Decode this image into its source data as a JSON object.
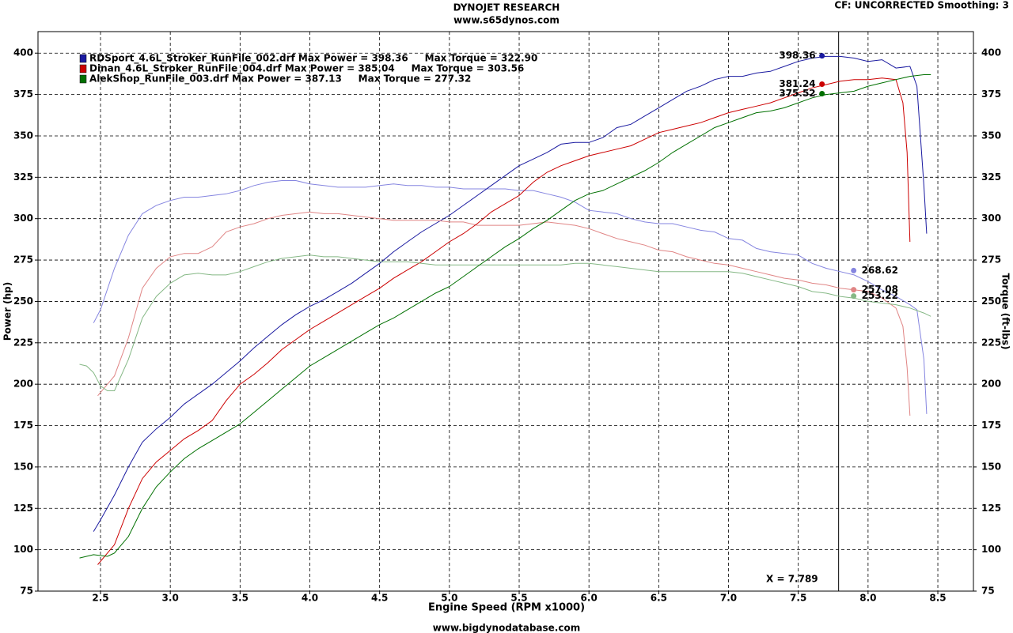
{
  "chart_data": {
    "type": "line",
    "title": "DYNOJET RESEARCH",
    "subtitle": "www.s65dynos.com",
    "top_right": "CF: UNCORRECTED  Smoothing: 3",
    "xlabel": "Engine Speed (RPM x1000)",
    "ylabel": "Power (hp)",
    "y2label": "Torque (ft-lbs)",
    "footer": "www.bigdynodatabase.com",
    "xlim": [
      2.052,
      8.755
    ],
    "xticks": [
      2.5,
      {
        "value": 3,
        "label": "3.0"
      },
      3.5,
      {
        "value": 4,
        "label": "4.0"
      },
      4.5,
      {
        "value": 5,
        "label": "5.0"
      },
      5.5,
      {
        "value": 6,
        "label": "6.0"
      },
      6.5,
      {
        "value": 7,
        "label": "7.0"
      },
      7.5,
      {
        "value": 8,
        "label": "8.0"
      },
      8.5
    ],
    "ylim": [
      75,
      413
    ],
    "yticks": [
      75,
      100,
      125,
      150,
      175,
      200,
      225,
      250,
      275,
      300,
      325,
      350,
      375,
      400
    ],
    "y2lim": [
      75,
      413
    ],
    "y2ticks": [
      75,
      100,
      125,
      150,
      175,
      200,
      225,
      250,
      275,
      300,
      325,
      350,
      375,
      400
    ],
    "grid": true,
    "cursor": {
      "value": 7.789,
      "label": "X = 7.789"
    },
    "runs": [
      {
        "name": "RDSport_4.6L_Stroker_RunFile_002.drf Max Power = 398.36     Max Torque = 322.90",
        "color": "#1a1aa0",
        "torque_color": "#8585e0",
        "power_readout": 398.36,
        "torque_readout": 268.62,
        "power": {
          "x": [
            2.45,
            2.5,
            2.6,
            2.7,
            2.8,
            2.9,
            3.0,
            3.1,
            3.2,
            3.3,
            3.4,
            3.5,
            3.6,
            3.7,
            3.8,
            3.9,
            4.0,
            4.1,
            4.2,
            4.3,
            4.4,
            4.5,
            4.6,
            4.7,
            4.8,
            4.9,
            5.0,
            5.1,
            5.2,
            5.3,
            5.4,
            5.5,
            5.6,
            5.7,
            5.8,
            5.9,
            6.0,
            6.1,
            6.2,
            6.3,
            6.4,
            6.5,
            6.6,
            6.7,
            6.8,
            6.9,
            7.0,
            7.1,
            7.2,
            7.3,
            7.4,
            7.5,
            7.6,
            7.7,
            7.8,
            7.9,
            8.0,
            8.1,
            8.2,
            8.3,
            8.35,
            8.4,
            8.42
          ],
          "values": [
            111,
            118,
            133,
            150,
            165,
            173,
            180,
            188,
            194,
            200,
            207,
            214,
            222,
            229,
            236,
            242,
            247,
            251,
            256,
            261,
            267,
            273,
            280,
            286,
            292,
            297,
            302,
            308,
            314,
            320,
            326,
            332,
            336,
            340,
            345,
            346,
            346,
            349,
            355,
            357,
            362,
            367,
            372,
            377,
            380,
            384,
            386,
            386,
            388,
            389,
            392,
            395,
            397,
            398,
            398,
            397,
            395,
            396,
            391,
            392,
            380,
            320,
            291
          ]
        },
        "torque": {
          "x": [
            2.45,
            2.5,
            2.6,
            2.7,
            2.8,
            2.9,
            3.0,
            3.1,
            3.2,
            3.3,
            3.4,
            3.5,
            3.6,
            3.7,
            3.8,
            3.9,
            4.0,
            4.1,
            4.2,
            4.3,
            4.4,
            4.5,
            4.6,
            4.7,
            4.8,
            4.9,
            5.0,
            5.1,
            5.2,
            5.3,
            5.4,
            5.5,
            5.6,
            5.7,
            5.8,
            5.9,
            6.0,
            6.1,
            6.2,
            6.3,
            6.4,
            6.5,
            6.6,
            6.7,
            6.8,
            6.9,
            7.0,
            7.1,
            7.2,
            7.3,
            7.4,
            7.5,
            7.6,
            7.7,
            7.8,
            7.9,
            8.0,
            8.1,
            8.2,
            8.3,
            8.35,
            8.4,
            8.42
          ],
          "values": [
            237,
            245,
            270,
            290,
            303,
            308,
            311,
            313,
            313,
            314,
            315,
            317,
            320,
            322,
            323,
            323,
            321,
            320,
            319,
            319,
            319,
            320,
            321,
            320,
            320,
            319,
            319,
            318,
            318,
            318,
            318,
            317,
            317,
            315,
            313,
            310,
            305,
            304,
            303,
            300,
            298,
            297,
            297,
            295,
            293,
            292,
            288,
            287,
            282,
            280,
            279,
            278,
            273,
            270,
            268,
            266,
            262,
            257,
            253,
            248,
            245,
            215,
            182
          ]
        }
      },
      {
        "name": "Dinan_4.6L_Stroker_RunFile_004.drf Max Power = 385.04     Max Torque = 303.56",
        "color": "#cc0000",
        "torque_color": "#e08585",
        "power_readout": 381.24,
        "torque_readout": 257.08,
        "power": {
          "x": [
            2.48,
            2.6,
            2.7,
            2.8,
            2.9,
            3.0,
            3.1,
            3.2,
            3.3,
            3.4,
            3.5,
            3.6,
            3.7,
            3.8,
            3.9,
            4.0,
            4.1,
            4.2,
            4.3,
            4.4,
            4.5,
            4.6,
            4.7,
            4.8,
            4.9,
            5.0,
            5.1,
            5.2,
            5.3,
            5.4,
            5.5,
            5.6,
            5.7,
            5.8,
            5.9,
            6.0,
            6.1,
            6.2,
            6.3,
            6.4,
            6.5,
            6.6,
            6.7,
            6.8,
            6.9,
            7.0,
            7.1,
            7.2,
            7.3,
            7.4,
            7.5,
            7.6,
            7.7,
            7.8,
            7.9,
            8.0,
            8.1,
            8.2,
            8.25,
            8.28,
            8.3
          ],
          "values": [
            91,
            103,
            125,
            143,
            153,
            160,
            167,
            172,
            178,
            190,
            200,
            206,
            213,
            221,
            227,
            233,
            238,
            243,
            248,
            253,
            258,
            264,
            269,
            274,
            280,
            286,
            291,
            297,
            304,
            309,
            314,
            322,
            328,
            332,
            335,
            338,
            340,
            342,
            344,
            348,
            352,
            354,
            356,
            358,
            361,
            364,
            366,
            368,
            370,
            373,
            376,
            379,
            381,
            383,
            384,
            384,
            385,
            384,
            370,
            340,
            286
          ]
        },
        "torque": {
          "x": [
            2.48,
            2.55,
            2.6,
            2.7,
            2.8,
            2.9,
            3.0,
            3.1,
            3.2,
            3.3,
            3.4,
            3.5,
            3.6,
            3.7,
            3.8,
            3.9,
            4.0,
            4.1,
            4.2,
            4.3,
            4.4,
            4.5,
            4.6,
            4.7,
            4.8,
            4.9,
            5.0,
            5.1,
            5.2,
            5.3,
            5.4,
            5.5,
            5.6,
            5.7,
            5.8,
            5.9,
            6.0,
            6.1,
            6.2,
            6.3,
            6.4,
            6.5,
            6.6,
            6.7,
            6.8,
            6.9,
            7.0,
            7.1,
            7.2,
            7.3,
            7.4,
            7.5,
            7.6,
            7.7,
            7.8,
            7.9,
            8.0,
            8.1,
            8.2,
            8.25,
            8.28,
            8.3
          ],
          "values": [
            193,
            200,
            205,
            228,
            258,
            270,
            277,
            279,
            279,
            283,
            292,
            295,
            297,
            300,
            302,
            303,
            304,
            303,
            303,
            302,
            301,
            300,
            299,
            299,
            299,
            299,
            298,
            298,
            296,
            296,
            296,
            296,
            297,
            298,
            297,
            296,
            294,
            291,
            288,
            286,
            284,
            281,
            280,
            277,
            275,
            273,
            272,
            270,
            268,
            266,
            264,
            263,
            261,
            260,
            258,
            257,
            256,
            252,
            246,
            235,
            210,
            181
          ]
        }
      },
      {
        "name": "AlekShop_RunFile_003.drf Max Power = 387.13     Max Torque = 277.32",
        "color": "#007000",
        "torque_color": "#85b885",
        "power_readout": 375.52,
        "torque_readout": 253.22,
        "power": {
          "x": [
            2.35,
            2.45,
            2.55,
            2.6,
            2.7,
            2.8,
            2.9,
            3.0,
            3.1,
            3.2,
            3.3,
            3.4,
            3.5,
            3.6,
            3.7,
            3.8,
            3.9,
            4.0,
            4.1,
            4.2,
            4.3,
            4.4,
            4.5,
            4.6,
            4.7,
            4.8,
            4.9,
            5.0,
            5.1,
            5.2,
            5.3,
            5.4,
            5.5,
            5.6,
            5.7,
            5.8,
            5.9,
            6.0,
            6.1,
            6.2,
            6.3,
            6.4,
            6.5,
            6.6,
            6.7,
            6.8,
            6.9,
            7.0,
            7.1,
            7.2,
            7.3,
            7.4,
            7.5,
            7.6,
            7.7,
            7.8,
            7.9,
            8.0,
            8.1,
            8.2,
            8.3,
            8.4,
            8.45
          ],
          "values": [
            95,
            97,
            96,
            98,
            108,
            125,
            138,
            147,
            155,
            161,
            166,
            171,
            176,
            183,
            190,
            197,
            204,
            211,
            216,
            221,
            226,
            231,
            236,
            240,
            245,
            250,
            255,
            259,
            265,
            271,
            277,
            283,
            288,
            294,
            299,
            305,
            311,
            315,
            317,
            321,
            325,
            329,
            334,
            340,
            345,
            350,
            355,
            358,
            361,
            364,
            365,
            367,
            370,
            373,
            375,
            376,
            377,
            380,
            382,
            384,
            386,
            387,
            387
          ]
        },
        "torque": {
          "x": [
            2.35,
            2.4,
            2.45,
            2.5,
            2.55,
            2.6,
            2.7,
            2.8,
            2.9,
            3.0,
            3.1,
            3.2,
            3.3,
            3.4,
            3.5,
            3.6,
            3.7,
            3.8,
            3.9,
            4.0,
            4.1,
            4.2,
            4.3,
            4.4,
            4.5,
            4.6,
            4.7,
            4.8,
            4.9,
            5.0,
            5.1,
            5.2,
            5.3,
            5.4,
            5.5,
            5.6,
            5.7,
            5.8,
            5.9,
            6.0,
            6.1,
            6.2,
            6.3,
            6.4,
            6.5,
            6.6,
            6.7,
            6.8,
            6.9,
            7.0,
            7.1,
            7.2,
            7.3,
            7.4,
            7.5,
            7.6,
            7.7,
            7.8,
            7.9,
            8.0,
            8.1,
            8.2,
            8.3,
            8.4,
            8.45
          ],
          "values": [
            212,
            211,
            207,
            199,
            196,
            196,
            215,
            240,
            253,
            261,
            266,
            267,
            266,
            266,
            268,
            271,
            274,
            276,
            277,
            278,
            277,
            277,
            276,
            275,
            274,
            274,
            274,
            273,
            272,
            272,
            272,
            272,
            272,
            272,
            272,
            272,
            272,
            272,
            273,
            273,
            272,
            271,
            270,
            269,
            268,
            268,
            268,
            268,
            268,
            268,
            267,
            265,
            263,
            261,
            259,
            256,
            255,
            253,
            252,
            250,
            249,
            248,
            246,
            243,
            241
          ]
        }
      }
    ]
  }
}
